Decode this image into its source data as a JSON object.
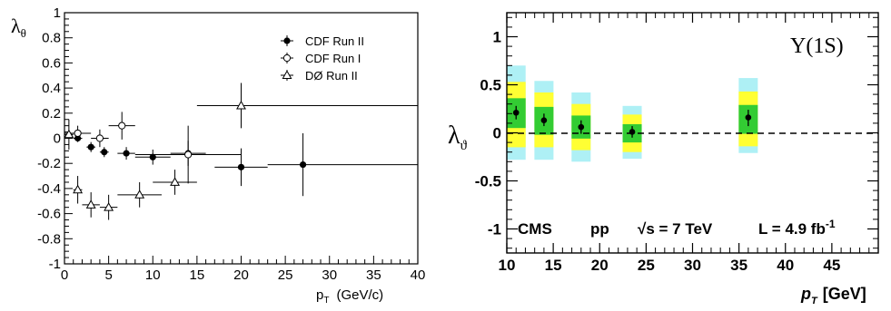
{
  "chart_data": [
    {
      "type": "scatter",
      "xlabel": "p",
      "xlabel_sub": "T",
      "xlabel_unit": "(GeV/c)",
      "ylabel": "λ",
      "ylabel_sub": "θ",
      "xlim": [
        0,
        40
      ],
      "ylim": [
        -1,
        1
      ],
      "x_ticks": [
        "0",
        "5",
        "10",
        "15",
        "20",
        "25",
        "30",
        "35",
        "40"
      ],
      "y_ticks": [
        "-1",
        "-0.8",
        "-0.6",
        "-0.4",
        "-0.2",
        "0",
        "0.2",
        "0.4",
        "0.6",
        "0.8",
        "1"
      ],
      "legend_position": "top-right",
      "series": [
        {
          "name": "CDF Run II",
          "marker": "filled-circle",
          "points": [
            {
              "x": 1.5,
              "xerr": 0.5,
              "y": 0.0,
              "yerr": 0.03
            },
            {
              "x": 3.0,
              "xerr": 0.5,
              "y": -0.07,
              "yerr": 0.04
            },
            {
              "x": 4.5,
              "xerr": 0.5,
              "y": -0.11,
              "yerr": 0.04
            },
            {
              "x": 7.0,
              "xerr": 1.0,
              "y": -0.12,
              "yerr": 0.05
            },
            {
              "x": 10.0,
              "xerr": 2.0,
              "y": -0.15,
              "yerr": 0.06
            },
            {
              "x": 14.0,
              "xerr": 2.0,
              "y": -0.12,
              "yerr": 0.1
            },
            {
              "x": 20.0,
              "xerr": 3.0,
              "y": -0.23,
              "yerr": 0.15
            },
            {
              "x": 27.0,
              "xerr": 4.0,
              "y": -0.21,
              "yerr": 0.25,
              "xmax": 40
            }
          ]
        },
        {
          "name": "CDF Run I",
          "marker": "open-circle",
          "points": [
            {
              "x": 1.5,
              "xerr": 1.5,
              "y": 0.04,
              "yerr": 0.06
            },
            {
              "x": 4.0,
              "xerr": 1.0,
              "y": 0.0,
              "yerr": 0.07
            },
            {
              "x": 6.5,
              "xerr": 1.5,
              "y": 0.1,
              "yerr": 0.11
            },
            {
              "x": 14.0,
              "xerr": 6.0,
              "y": -0.13,
              "yerr": 0.23
            }
          ]
        },
        {
          "name": "DØ Run II",
          "marker": "open-triangle",
          "points": [
            {
              "x": 0.5,
              "xerr": 0.5,
              "y": 0.03,
              "yerr": 0.12
            },
            {
              "x": 1.5,
              "xerr": 0.5,
              "y": -0.41,
              "yerr": 0.11
            },
            {
              "x": 3.0,
              "xerr": 1.0,
              "y": -0.53,
              "yerr": 0.1
            },
            {
              "x": 5.0,
              "xerr": 1.0,
              "y": -0.55,
              "yerr": 0.1
            },
            {
              "x": 8.5,
              "xerr": 2.5,
              "y": -0.45,
              "yerr": 0.1
            },
            {
              "x": 12.5,
              "xerr": 2.5,
              "y": -0.35,
              "yerr": 0.1
            },
            {
              "x": 20.0,
              "xerr": 5.0,
              "y": 0.26,
              "yerr": 0.18,
              "xmax": 40
            }
          ]
        }
      ]
    },
    {
      "type": "scatter",
      "xlabel": "p",
      "xlabel_sub": "T",
      "xlabel_unit": "[GeV]",
      "ylabel": "λ",
      "ylabel_sub": "ϑ",
      "xlim": [
        10,
        50
      ],
      "ylim": [
        -1.25,
        1.25
      ],
      "x_ticks": [
        "10",
        "15",
        "20",
        "25",
        "30",
        "35",
        "40",
        "45"
      ],
      "y_ticks": [
        "-1",
        "-0.5",
        "0",
        "0.5",
        "1"
      ],
      "reference_line": 0,
      "title": "Υ(1S)",
      "annotations": [
        "CMS",
        "pp",
        "√s = 7 TeV",
        "L = 4.9 fb",
        "-1"
      ],
      "band_colors": {
        "band_99": "#aef0f5",
        "band_95": "#ffff33",
        "band_68": "#33cc33"
      },
      "points": [
        {
          "x": 11,
          "y": 0.21,
          "err_lo": 0.07,
          "err_hi": 0.07,
          "band_68": [
            0.05,
            0.36
          ],
          "band_95": [
            -0.15,
            0.53
          ],
          "band_99": [
            -0.28,
            0.7
          ]
        },
        {
          "x": 14,
          "y": 0.13,
          "err_lo": 0.06,
          "err_hi": 0.07,
          "band_68": [
            -0.02,
            0.27
          ],
          "band_95": [
            -0.15,
            0.42
          ],
          "band_99": [
            -0.28,
            0.54
          ]
        },
        {
          "x": 18,
          "y": 0.06,
          "err_lo": 0.07,
          "err_hi": 0.07,
          "band_68": [
            -0.06,
            0.18
          ],
          "band_95": [
            -0.18,
            0.3
          ],
          "band_99": [
            -0.3,
            0.42
          ]
        },
        {
          "x": 23.5,
          "y": 0.01,
          "err_lo": 0.06,
          "err_hi": 0.06,
          "band_68": [
            -0.1,
            0.09
          ],
          "band_95": [
            -0.2,
            0.19
          ],
          "band_99": [
            -0.27,
            0.28
          ]
        },
        {
          "x": 36,
          "y": 0.16,
          "err_lo": 0.09,
          "err_hi": 0.08,
          "band_68": [
            -0.01,
            0.29
          ],
          "band_95": [
            -0.14,
            0.43
          ],
          "band_99": [
            -0.21,
            0.57
          ]
        }
      ]
    }
  ]
}
